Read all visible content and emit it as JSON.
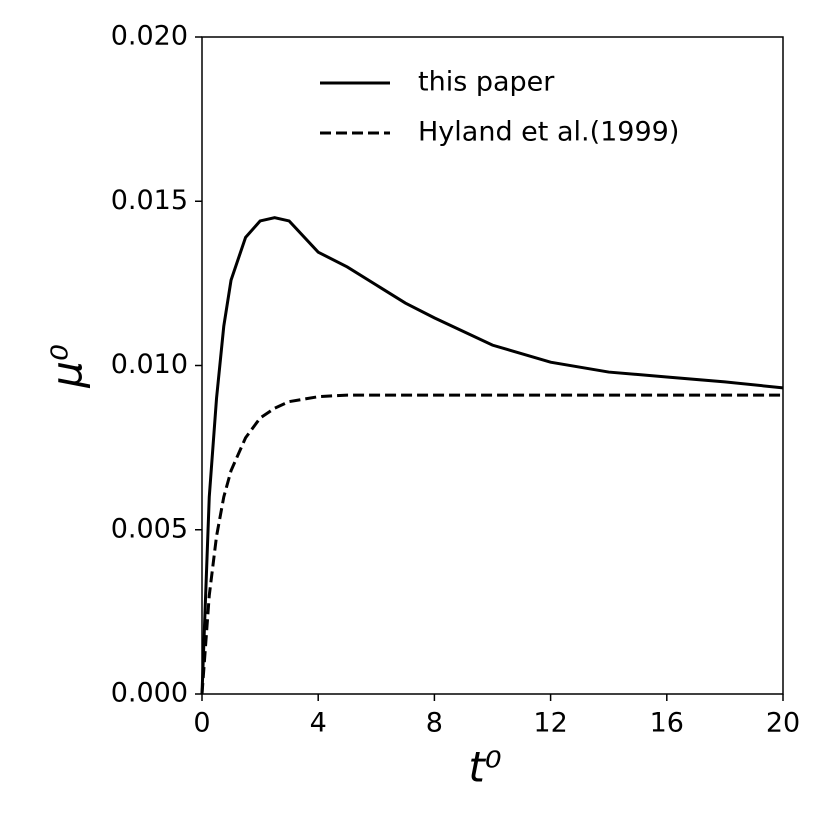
{
  "chart_data": {
    "type": "line",
    "xlabel": "t⁰",
    "ylabel": "μ⁰",
    "x": [
      0,
      0.25,
      0.5,
      0.75,
      1,
      1.5,
      2,
      2.5,
      3,
      4,
      5,
      6,
      7,
      8,
      10,
      12,
      14,
      16,
      18,
      20
    ],
    "series": [
      {
        "name": "this paper",
        "color": "#000000",
        "dash": "solid",
        "values": [
          0,
          0.006,
          0.009,
          0.0112,
          0.0126,
          0.0139,
          0.0144,
          0.0145,
          0.0144,
          0.01345,
          0.013,
          0.01245,
          0.0119,
          0.01145,
          0.01062,
          0.0101,
          0.0098,
          0.00965,
          0.0095,
          0.00932
        ]
      },
      {
        "name": "Hyland et al.(1999)",
        "color": "#000000",
        "dash": "dashed",
        "values": [
          0,
          0.003,
          0.0048,
          0.006,
          0.0068,
          0.0078,
          0.0084,
          0.0087,
          0.0089,
          0.00905,
          0.0091,
          0.0091,
          0.0091,
          0.0091,
          0.0091,
          0.0091,
          0.0091,
          0.0091,
          0.0091,
          0.0091
        ]
      }
    ],
    "xlim": [
      0,
      20
    ],
    "xticks": [
      0,
      4,
      8,
      12,
      16,
      20
    ],
    "ylim": [
      0,
      0.02
    ],
    "yticks": [
      {
        "value": 0,
        "label": "0.000"
      },
      {
        "value": 0.005,
        "label": "0.005"
      },
      {
        "value": 0.01,
        "label": "0.010"
      },
      {
        "value": 0.015,
        "label": "0.015"
      },
      {
        "value": 0.02,
        "label": "0.020"
      }
    ],
    "legend": "upper center",
    "grid": false
  }
}
